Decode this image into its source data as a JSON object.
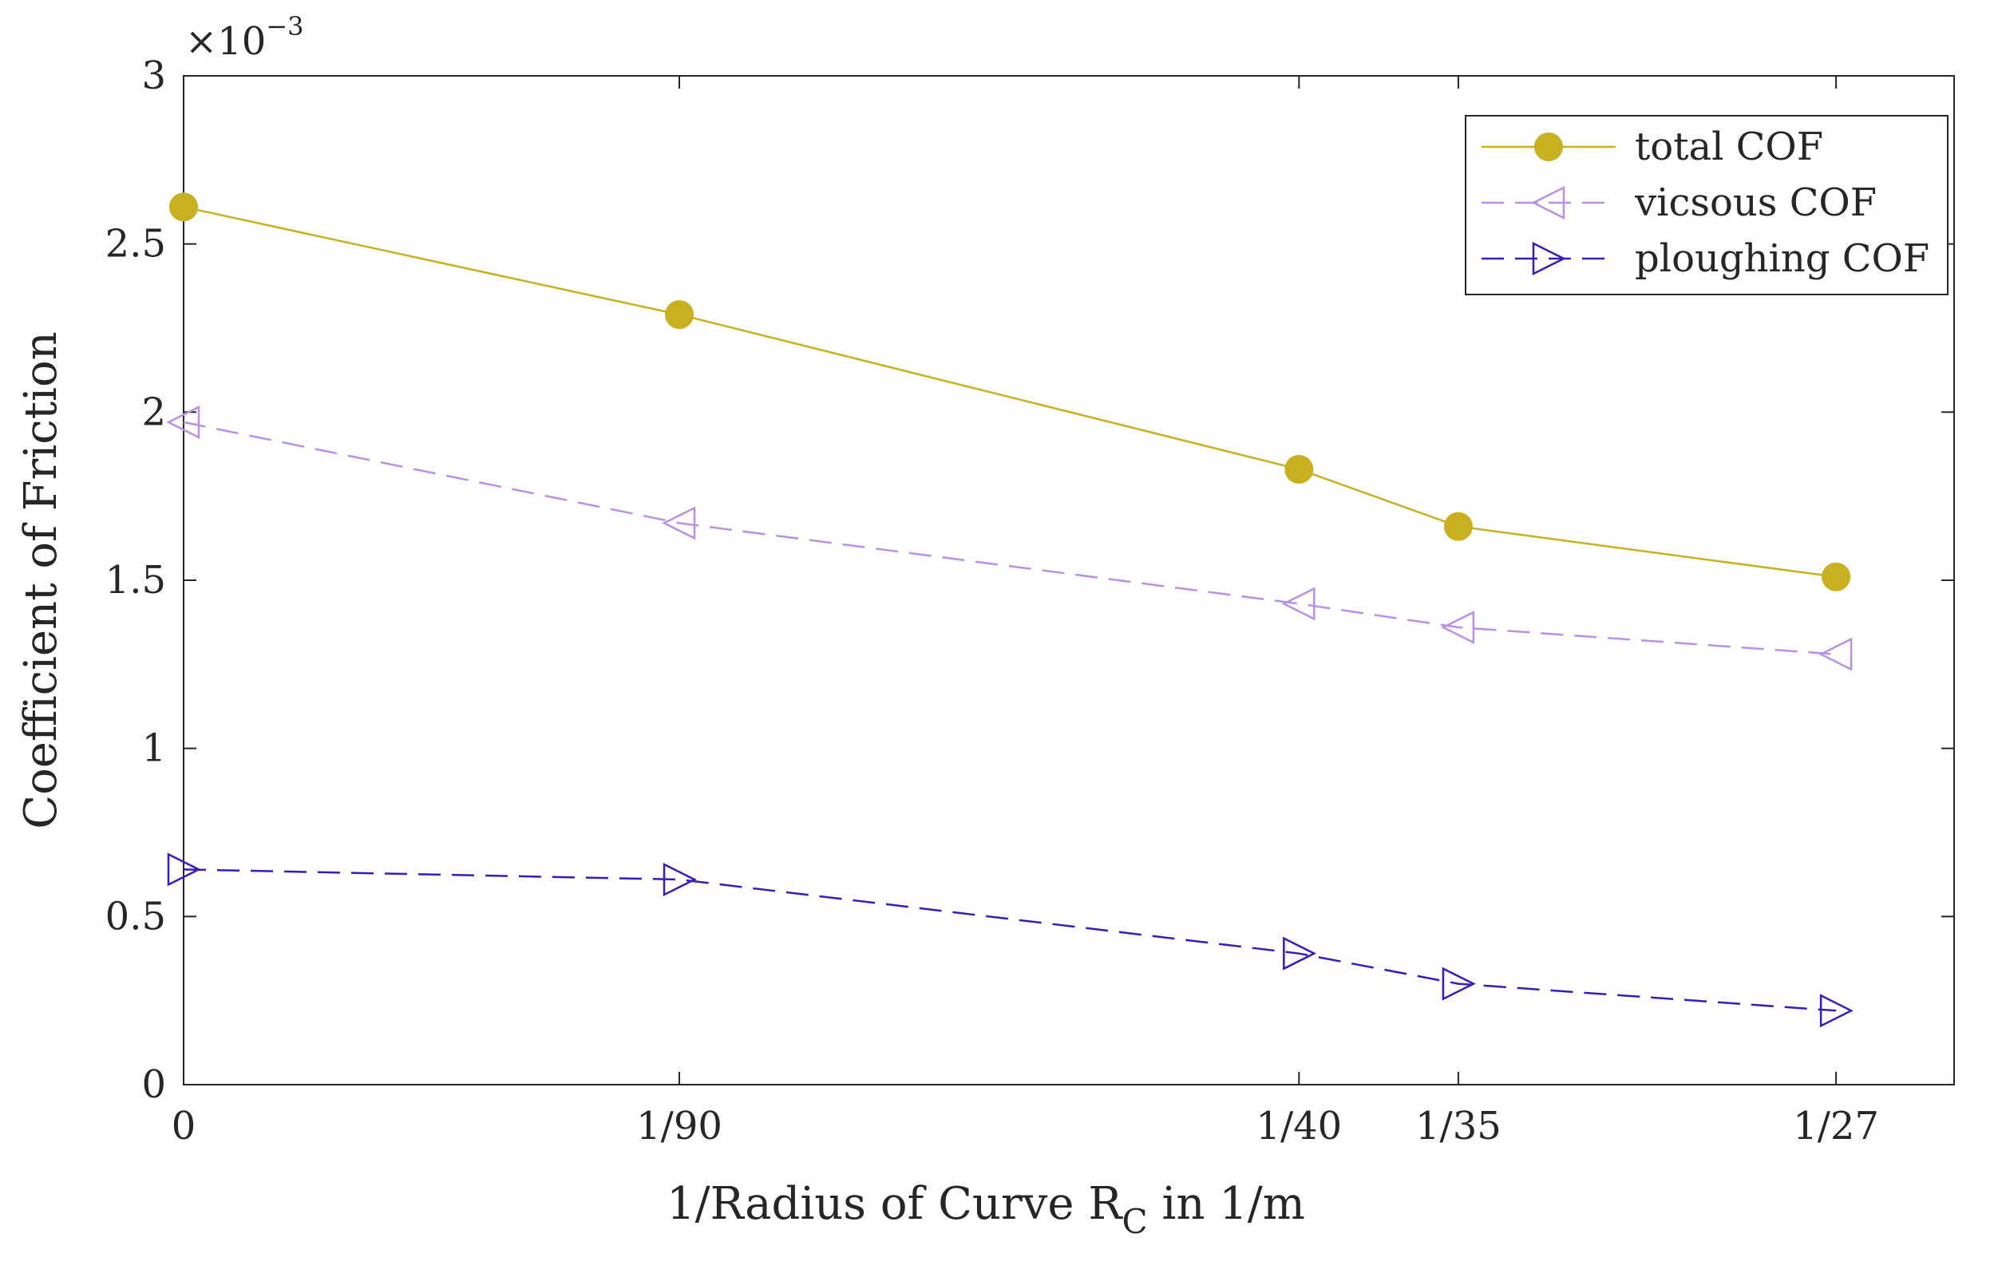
{
  "chart_data": {
    "type": "line",
    "title": "",
    "xlabel_prefix": "1/Radius of Curve R",
    "xlabel_subscript": "C",
    "xlabel_suffix": " in 1/m",
    "ylabel": "Coefficient of Friction",
    "y_exponent_base": "×10",
    "y_exponent_power": "−3",
    "x_values": [
      0,
      0.011111,
      0.025,
      0.028571,
      0.037037
    ],
    "x_tick_labels": [
      "0",
      "1/90",
      "1/40",
      "1/35",
      "1/27"
    ],
    "xlim": [
      0,
      0.039683
    ],
    "y_ticks": [
      0,
      0.5,
      1,
      1.5,
      2,
      2.5,
      3
    ],
    "y_tick_labels": [
      "0",
      "0.5",
      "1",
      "1.5",
      "2",
      "2.5",
      "3"
    ],
    "ylim": [
      0,
      3
    ],
    "grid": false,
    "legend_position": "top-right",
    "series": [
      {
        "name": "total COF",
        "values": [
          2.61,
          2.29,
          1.83,
          1.66,
          1.51
        ],
        "color": "#C9B021",
        "line_style": "solid",
        "marker": "filled-circle"
      },
      {
        "name": "vicsous COF",
        "values": [
          1.97,
          1.67,
          1.43,
          1.36,
          1.28
        ],
        "color": "#B990E8",
        "line_style": "dashed",
        "marker": "triangle-left"
      },
      {
        "name": "ploughing COF",
        "values": [
          0.64,
          0.61,
          0.39,
          0.3,
          0.22
        ],
        "color": "#3A1AB8",
        "line_style": "dashed",
        "marker": "triangle-right"
      }
    ]
  }
}
